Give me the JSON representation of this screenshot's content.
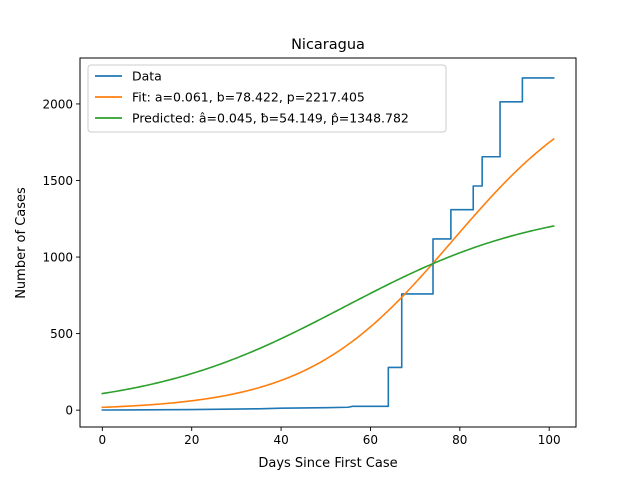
{
  "chart_data": {
    "type": "line",
    "title": "Nicaragua",
    "xlabel": "Days Since First Case",
    "ylabel": "Number of Cases",
    "xlim": [
      -5,
      106
    ],
    "ylim": [
      -110,
      2300
    ],
    "xticks": [
      0,
      20,
      40,
      60,
      80,
      100
    ],
    "yticks": [
      0,
      500,
      1000,
      1500,
      2000
    ],
    "legend_position": "top-left",
    "grid": false,
    "series": [
      {
        "name": "Data",
        "color": "#1f77b4",
        "style": "step",
        "points": [
          [
            0,
            1
          ],
          [
            10,
            2
          ],
          [
            20,
            4
          ],
          [
            30,
            7
          ],
          [
            35,
            9
          ],
          [
            40,
            13
          ],
          [
            50,
            16
          ],
          [
            55,
            19
          ],
          [
            56,
            25
          ],
          [
            64,
            25
          ],
          [
            64,
            279
          ],
          [
            67,
            279
          ],
          [
            67,
            759
          ],
          [
            74,
            759
          ],
          [
            74,
            1118
          ],
          [
            78,
            1118
          ],
          [
            78,
            1309
          ],
          [
            83,
            1309
          ],
          [
            83,
            1464
          ],
          [
            85,
            1464
          ],
          [
            85,
            1655
          ],
          [
            89,
            1655
          ],
          [
            89,
            2014
          ],
          [
            94,
            2014
          ],
          [
            94,
            2170
          ],
          [
            101,
            2170
          ]
        ]
      },
      {
        "name": "Fit: a=0.061, b=78.422, p=2217.405",
        "color": "#ff7f0e",
        "style": "logistic",
        "params": {
          "a": 0.061,
          "b": 78.422,
          "p": 2217.405
        },
        "x_range": [
          0,
          101
        ]
      },
      {
        "name": "Predicted: â=0.045, ƀ=54.149, p̂=1348.782",
        "color": "#2ca02c",
        "style": "logistic",
        "params": {
          "a": 0.045,
          "b": 54.149,
          "p": 1348.782
        },
        "x_range": [
          0,
          101
        ]
      }
    ]
  }
}
